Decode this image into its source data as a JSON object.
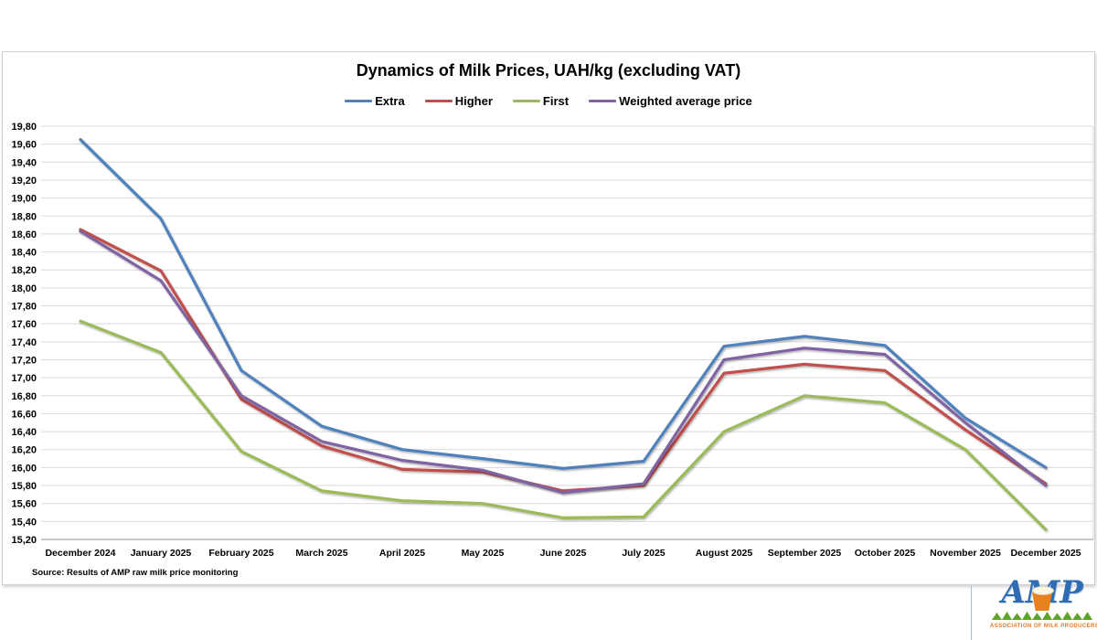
{
  "chart_data": {
    "type": "line",
    "title": "Dynamics of Milk Prices, UAH/kg (excluding VAT)",
    "source": "Source: Results of AMP raw milk price monitoring",
    "categories": [
      "December 2024",
      "January 2025",
      "February 2025",
      "March 2025",
      "April 2025",
      "May 2025",
      "June 2025",
      "July 2025",
      "August 2025",
      "September 2025",
      "October 2025",
      "November 2025",
      "December 2025"
    ],
    "series": [
      {
        "name": "Extra",
        "color": "#4F81BD",
        "values": [
          19.65,
          18.77,
          17.08,
          16.46,
          16.2,
          16.1,
          15.99,
          16.07,
          17.35,
          17.46,
          17.36,
          16.55,
          16.0
        ]
      },
      {
        "name": "Higher",
        "color": "#C0504D",
        "values": [
          18.65,
          18.19,
          16.76,
          16.24,
          15.98,
          15.95,
          15.74,
          15.8,
          17.05,
          17.15,
          17.08,
          16.42,
          15.82
        ]
      },
      {
        "name": "First",
        "color": "#9BBB59",
        "values": [
          17.63,
          17.28,
          16.18,
          15.74,
          15.63,
          15.6,
          15.44,
          15.45,
          16.4,
          16.8,
          16.72,
          16.2,
          15.31
        ]
      },
      {
        "name": "Weighted average price",
        "color": "#8064A2",
        "values": [
          18.63,
          18.08,
          16.8,
          16.29,
          16.08,
          15.97,
          15.72,
          15.82,
          17.2,
          17.33,
          17.26,
          16.5,
          15.8
        ]
      }
    ],
    "y_axis": {
      "min": 15.2,
      "max": 19.8,
      "step": 0.2,
      "decimal_separator": ","
    },
    "y_tick_labels": [
      "19,80",
      "19,60",
      "19,40",
      "19,20",
      "19,00",
      "18,80",
      "18,60",
      "18,40",
      "18,20",
      "18,00",
      "17,80",
      "17,60",
      "17,40",
      "17,20",
      "17,00",
      "16,80",
      "16,60",
      "16,40",
      "16,20",
      "16,00",
      "15,80",
      "15,60",
      "15,40",
      "15,20"
    ],
    "grid": true,
    "legend_position": "top"
  },
  "colors": {
    "gridline": "#d9d9d9",
    "axis_line": "#a6a6a6",
    "tick_text": "#000000"
  },
  "logo": {
    "text": "AMP",
    "subtext": "ASSOCIATION OF MILK PRODUCERS",
    "colors": {
      "letters": "#2f6cb3",
      "bucket": "#e8821e",
      "grass": "#5fa32c",
      "subtext": "#e87722"
    }
  }
}
